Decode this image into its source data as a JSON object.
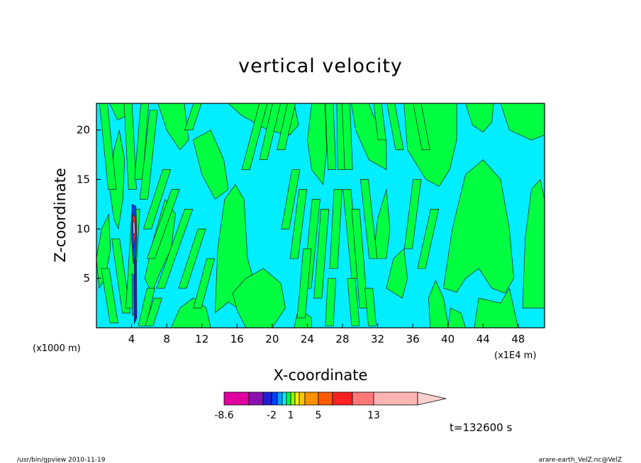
{
  "chart_data": {
    "type": "heatmap",
    "title": "vertical velocity",
    "xlabel": "X-coordinate",
    "ylabel": "Z-coordinate",
    "x_unit": "(x1E4 m)",
    "y_unit": "(x1000 m)",
    "x_ticks": [
      4,
      8,
      12,
      16,
      20,
      24,
      28,
      32,
      36,
      40,
      44,
      48
    ],
    "y_ticks": [
      5,
      10,
      15,
      20
    ],
    "xlim": [
      0,
      51
    ],
    "ylim": [
      0,
      22.7
    ],
    "colorbar": {
      "levels": [
        -8.6,
        -7,
        -5,
        -3.5,
        -2,
        -1.5,
        -0.5,
        0,
        0.5,
        1,
        1.5,
        3,
        5,
        7,
        10,
        13,
        22
      ],
      "colors": [
        "#e000a0",
        "#8a10b0",
        "#2020d0",
        "#0040ff",
        "#00a0ff",
        "#00eeff",
        "#00ff40",
        "#90ff00",
        "#ffee00",
        "#ffc800",
        "#ff9000",
        "#ff5a00",
        "#ff2020",
        "#ff7878",
        "#ffb4b4",
        "#ffd0d0"
      ],
      "tick_labels": [
        "-8.6",
        "-2",
        "1",
        "5",
        "13"
      ],
      "tick_values": [
        -8.6,
        -2,
        1,
        5,
        13
      ],
      "extend": "max"
    },
    "legend": "none",
    "grid": false
  },
  "time_label": "t=132600 s",
  "footer": {
    "left": "/usr/bin/gpview   2010-11-19",
    "right": "arare-earth_VelZ.nc@VelZ"
  }
}
